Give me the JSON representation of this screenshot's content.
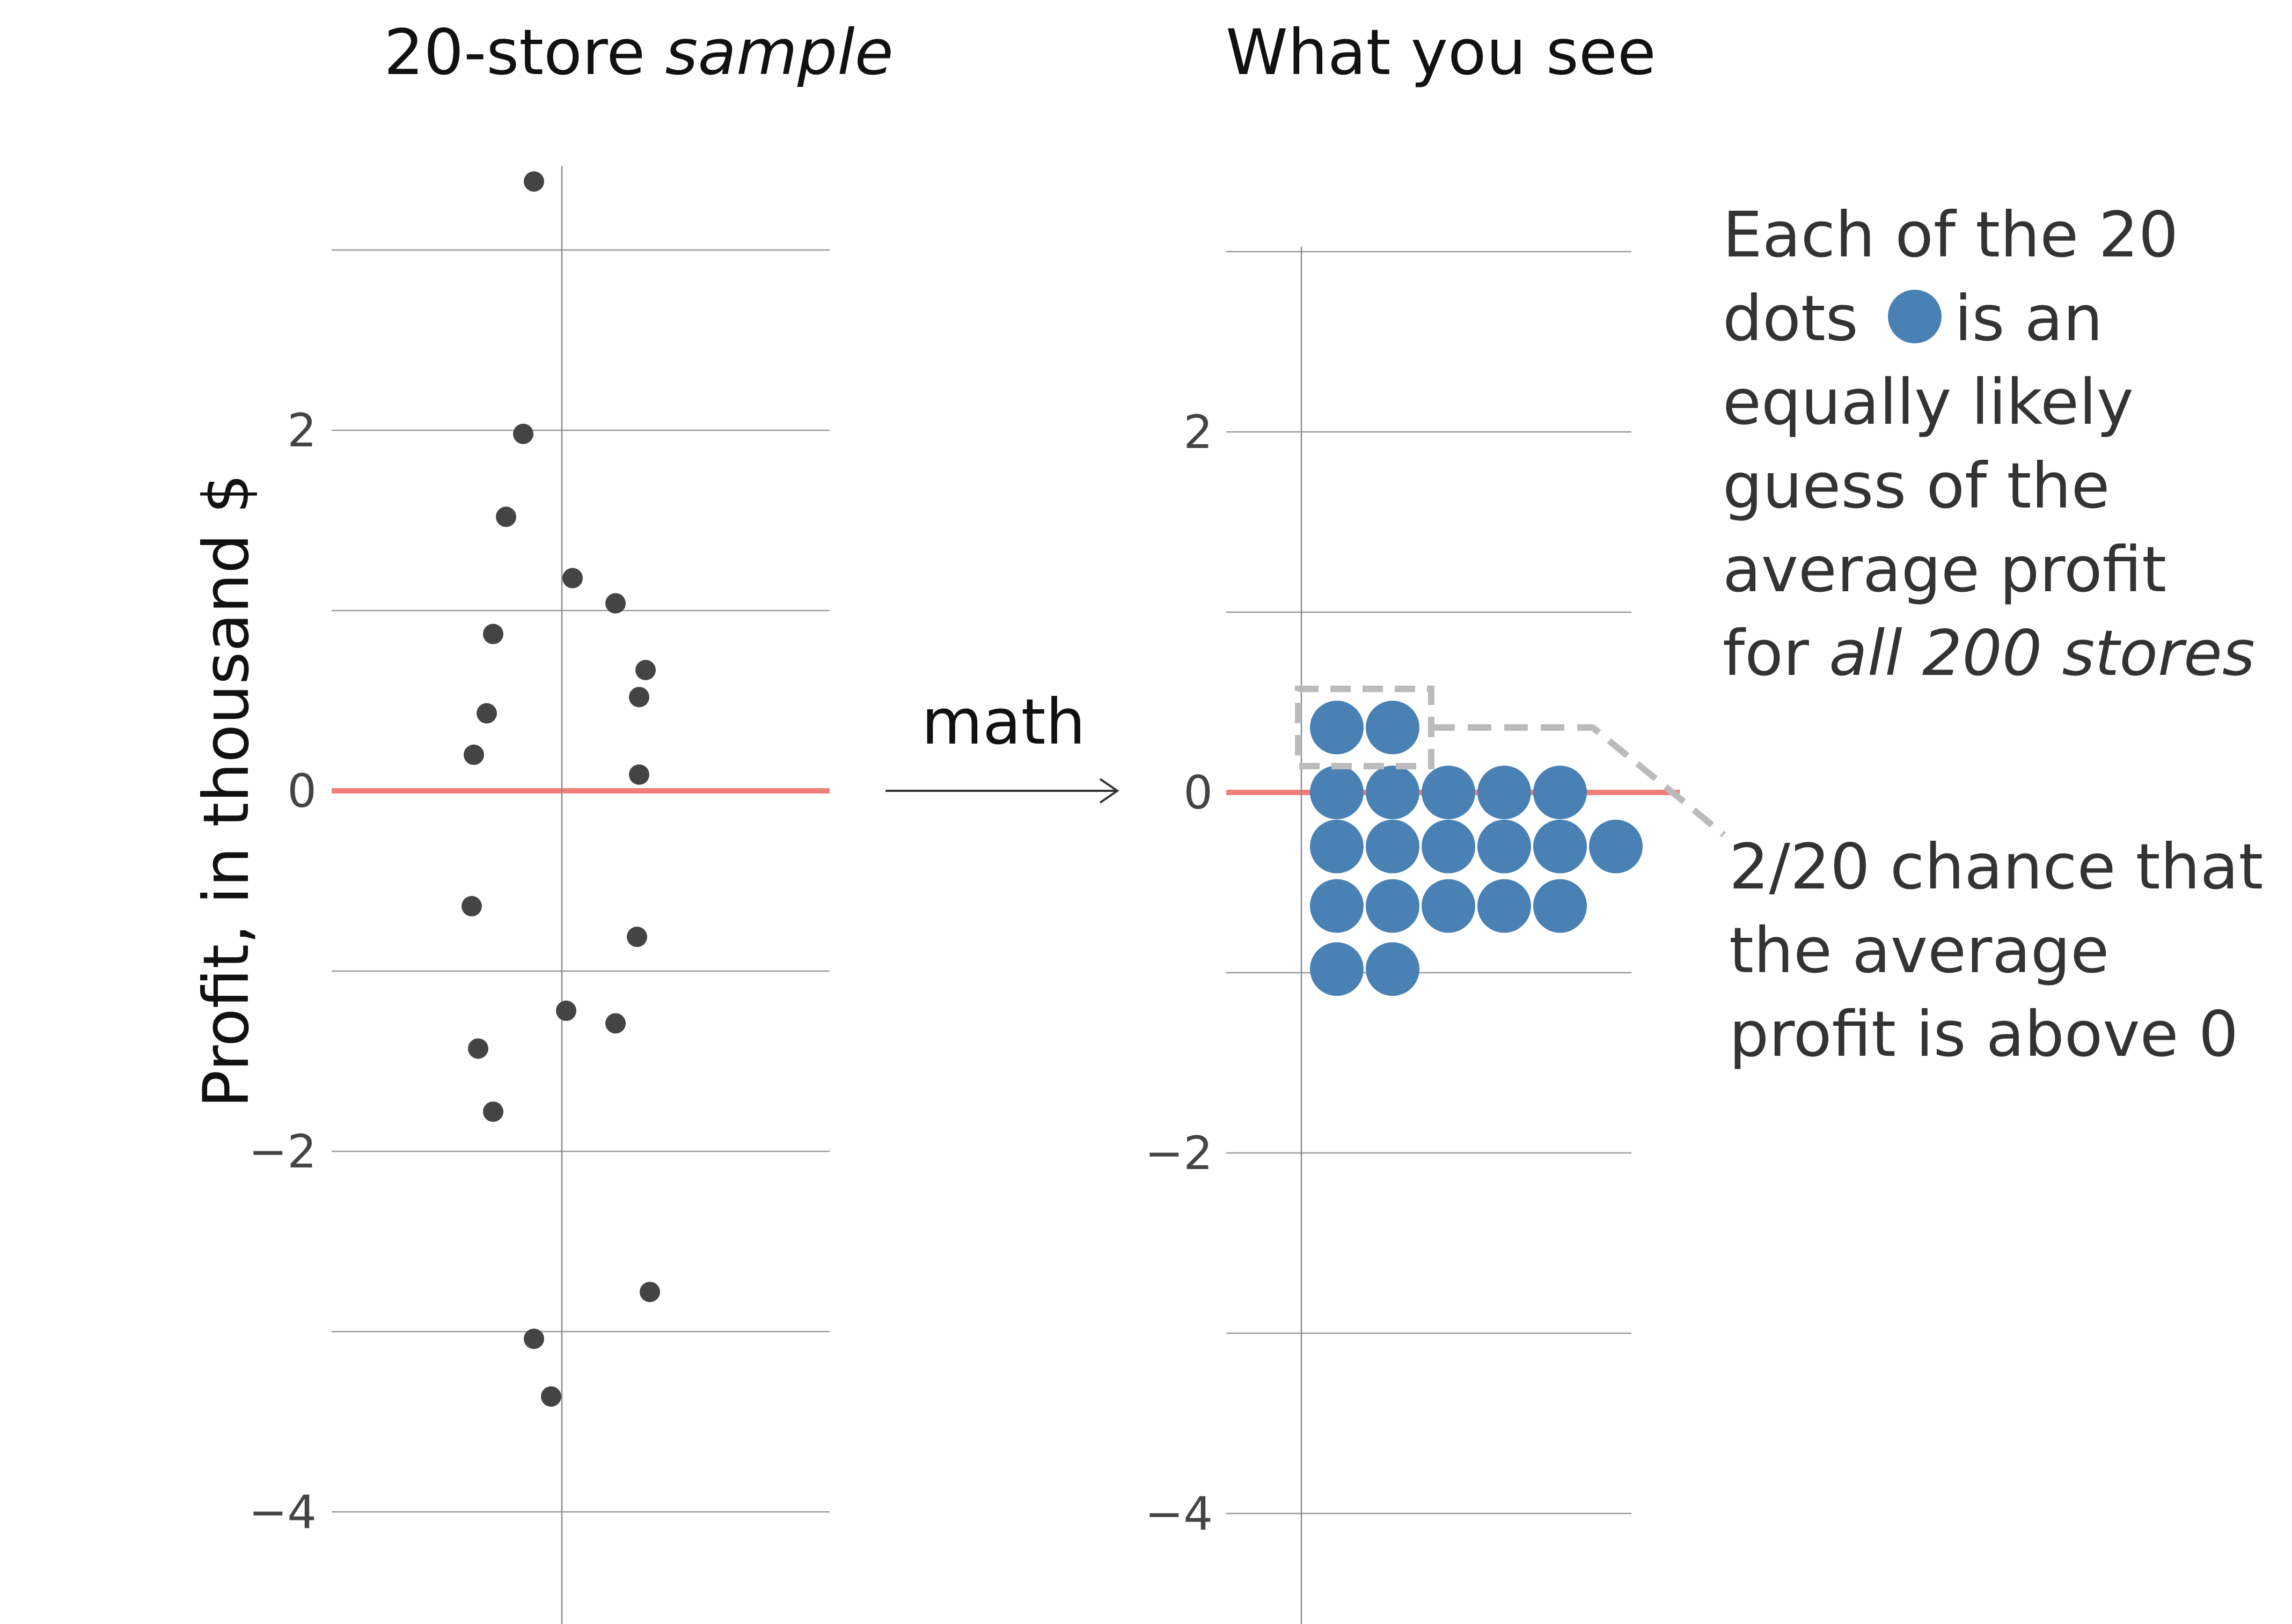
{
  "chart_data": [
    {
      "type": "scatter",
      "title": "20-store sample",
      "title_parts": [
        {
          "text": "20-store ",
          "italic": false
        },
        {
          "text": "sample",
          "italic": true
        }
      ],
      "ylabel": "Profit, in thousand $",
      "ylim": [
        -4.6,
        3.5
      ],
      "y_ticks": [
        2,
        0,
        -2,
        -4
      ],
      "y_tick_labels": [
        "2",
        "0",
        "−2",
        "−4"
      ],
      "gridlines": [
        3,
        2,
        1,
        0,
        -1,
        -2,
        -3,
        -4
      ],
      "reference_line": 0,
      "points": [
        {
          "x": -0.13,
          "y": 3.38
        },
        {
          "x": -0.18,
          "y": 1.98
        },
        {
          "x": -0.26,
          "y": 1.52
        },
        {
          "x": 0.05,
          "y": 1.18
        },
        {
          "x": 0.25,
          "y": 1.04
        },
        {
          "x": -0.32,
          "y": 0.87
        },
        {
          "x": 0.39,
          "y": 0.67
        },
        {
          "x": 0.36,
          "y": 0.52
        },
        {
          "x": -0.35,
          "y": 0.43
        },
        {
          "x": -0.41,
          "y": 0.2
        },
        {
          "x": 0.36,
          "y": 0.09
        },
        {
          "x": -0.42,
          "y": -0.64
        },
        {
          "x": 0.35,
          "y": -0.81
        },
        {
          "x": 0.02,
          "y": -1.22
        },
        {
          "x": 0.25,
          "y": -1.29
        },
        {
          "x": -0.39,
          "y": -1.43
        },
        {
          "x": -0.32,
          "y": -1.78
        },
        {
          "x": 0.41,
          "y": -2.78
        },
        {
          "x": -0.13,
          "y": -3.04
        },
        {
          "x": -0.05,
          "y": -3.36
        }
      ]
    },
    {
      "type": "dot-histogram",
      "title": "What you see",
      "ylim": [
        -4.6,
        3.5
      ],
      "y_ticks": [
        2,
        0,
        -2,
        -4
      ],
      "y_tick_labels": [
        "2",
        "0",
        "−2",
        "−4"
      ],
      "gridlines": [
        3,
        2,
        1,
        0,
        -1,
        -2,
        -3,
        -4
      ],
      "reference_line": 0,
      "bin_values": [
        0.36,
        0.0,
        -0.3,
        -0.63,
        -0.98
      ],
      "bin_counts": [
        2,
        5,
        6,
        5,
        2
      ],
      "dot_color": "#4a81b4",
      "highlight_bin": 0.36
    }
  ],
  "arrow_label": "math",
  "legend_note": {
    "lines": [
      [
        {
          "text": "Each of the 20",
          "italic": false
        }
      ],
      [
        {
          "text": "dots",
          "italic": false
        },
        {
          "text": "is an",
          "italic": false
        }
      ],
      [
        {
          "text": "equally likely",
          "italic": false
        }
      ],
      [
        {
          "text": "guess of the",
          "italic": false
        }
      ],
      [
        {
          "text": "average profit",
          "italic": false
        }
      ],
      [
        {
          "text": "for ",
          "italic": false
        },
        {
          "text": "all 200 stores",
          "italic": true
        }
      ]
    ]
  },
  "callout_note": {
    "lines": [
      "2/20 chance that",
      "the average",
      "profit is above 0"
    ]
  },
  "colors": {
    "dot_dark": "#444444",
    "dot_blue": "#4a81b4",
    "zero_line": "#f07f79",
    "grid": "#9a9a9a",
    "callout": "#bbbbbb"
  }
}
